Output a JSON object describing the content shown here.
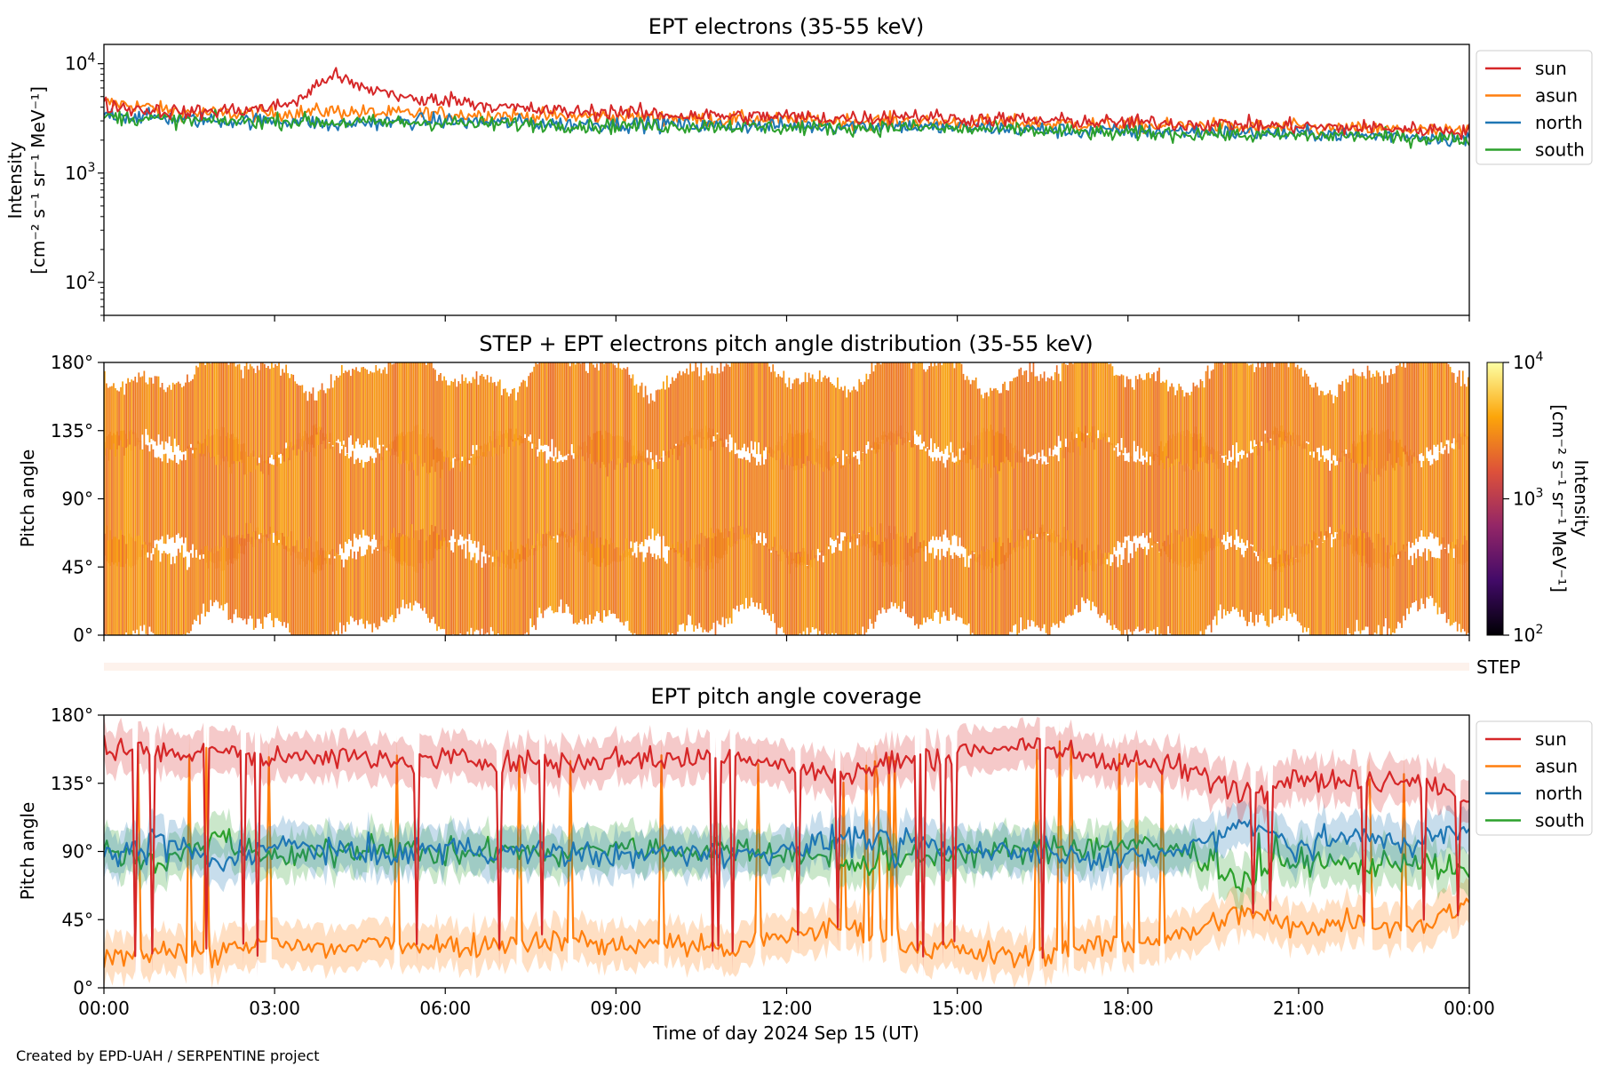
{
  "chart_data": [
    {
      "type": "line",
      "title": "EPT electrons (35-55 keV)",
      "ylabel_lines": [
        "Intensity",
        "[cm⁻² s⁻¹ sr⁻¹ MeV⁻¹]"
      ],
      "yscale": "log",
      "ylim": [
        50,
        15000
      ],
      "yticks": [
        {
          "value": 100,
          "label": "10",
          "exp": "2"
        },
        {
          "value": 1000,
          "label": "10",
          "exp": "3"
        },
        {
          "value": 10000,
          "label": "10",
          "exp": "4"
        }
      ],
      "xlim_hours": [
        0,
        24
      ],
      "legend_placement": "outside-right-top",
      "series": [
        {
          "name": "sun",
          "color": "#d62728",
          "x_hours": [
            0,
            0.5,
            1,
            1.5,
            2,
            2.5,
            3,
            3.5,
            4,
            4.5,
            5,
            5.5,
            6,
            6.5,
            7,
            7.5,
            8,
            8.5,
            9,
            9.5,
            10,
            10.5,
            11,
            11.5,
            12,
            12.5,
            13,
            13.5,
            14,
            14.5,
            15,
            15.5,
            16,
            16.5,
            17,
            17.5,
            18,
            18.5,
            19,
            19.5,
            20,
            20.5,
            21,
            21.5,
            22,
            22.5,
            23,
            23.5,
            24
          ],
          "values": [
            4200,
            3900,
            3700,
            3600,
            3700,
            3800,
            4000,
            4800,
            8000,
            6000,
            5500,
            4500,
            4800,
            4400,
            4000,
            3800,
            3700,
            3600,
            3700,
            3500,
            3400,
            3400,
            3300,
            3300,
            3300,
            3200,
            3200,
            3200,
            3400,
            3300,
            3100,
            3100,
            3100,
            3000,
            3000,
            2900,
            2900,
            2900,
            2800,
            2800,
            2800,
            2700,
            2700,
            2600,
            2600,
            2600,
            2500,
            2500,
            2400
          ]
        },
        {
          "name": "asun",
          "color": "#ff7f0e",
          "x_hours": [
            0,
            0.5,
            1,
            1.5,
            2,
            2.5,
            3,
            3.5,
            4,
            4.5,
            5,
            5.5,
            6,
            6.5,
            7,
            7.5,
            8,
            8.5,
            9,
            9.5,
            10,
            10.5,
            11,
            11.5,
            12,
            12.5,
            13,
            13.5,
            14,
            14.5,
            15,
            15.5,
            16,
            16.5,
            17,
            17.5,
            18,
            18.5,
            19,
            19.5,
            20,
            20.5,
            21,
            21.5,
            22,
            22.5,
            23,
            23.5,
            24
          ],
          "values": [
            4400,
            4200,
            3800,
            3600,
            3500,
            3500,
            3500,
            3600,
            3700,
            3600,
            3500,
            3500,
            3500,
            3400,
            3400,
            3300,
            3300,
            3300,
            3300,
            3200,
            3200,
            3100,
            3100,
            3100,
            3000,
            3000,
            3000,
            3000,
            3000,
            2900,
            2900,
            2900,
            2900,
            2800,
            2800,
            2800,
            2700,
            2700,
            2700,
            2700,
            2600,
            2600,
            2600,
            2500,
            2500,
            2500,
            2500,
            2400,
            2400
          ]
        },
        {
          "name": "north",
          "color": "#1f77b4",
          "x_hours": [
            0,
            0.5,
            1,
            1.5,
            2,
            2.5,
            3,
            3.5,
            4,
            4.5,
            5,
            5.5,
            6,
            6.5,
            7,
            7.5,
            8,
            8.5,
            9,
            9.5,
            10,
            10.5,
            11,
            11.5,
            12,
            12.5,
            13,
            13.5,
            14,
            14.5,
            15,
            15.5,
            16,
            16.5,
            17,
            17.5,
            18,
            18.5,
            19,
            19.5,
            20,
            20.5,
            21,
            21.5,
            22,
            22.5,
            23,
            23.5,
            24
          ],
          "values": [
            3500,
            3300,
            3200,
            3100,
            3000,
            3000,
            3000,
            3000,
            2700,
            2900,
            2900,
            3000,
            3000,
            2900,
            2900,
            2900,
            2800,
            2800,
            2800,
            2800,
            2800,
            2700,
            2700,
            2700,
            2700,
            2700,
            2700,
            2700,
            2700,
            2600,
            2600,
            2600,
            2500,
            2500,
            2400,
            2400,
            2400,
            2400,
            2400,
            2400,
            2300,
            2300,
            2300,
            2300,
            2200,
            2200,
            2200,
            2100,
            2000
          ]
        },
        {
          "name": "south",
          "color": "#2ca02c",
          "x_hours": [
            0,
            0.5,
            1,
            1.5,
            2,
            2.5,
            3,
            3.5,
            4,
            4.5,
            5,
            5.5,
            6,
            6.5,
            7,
            7.5,
            8,
            8.5,
            9,
            9.5,
            10,
            10.5,
            11,
            11.5,
            12,
            12.5,
            13,
            13.5,
            14,
            14.5,
            15,
            15.5,
            16,
            16.5,
            17,
            17.5,
            18,
            18.5,
            19,
            19.5,
            20,
            20.5,
            21,
            21.5,
            22,
            22.5,
            23,
            23.5,
            24
          ],
          "values": [
            3300,
            3200,
            3100,
            3000,
            3000,
            3000,
            3000,
            3000,
            2900,
            2900,
            2900,
            2900,
            2900,
            2800,
            2800,
            2800,
            2800,
            2700,
            2700,
            2700,
            2700,
            2700,
            2700,
            2600,
            2600,
            2600,
            2600,
            2600,
            2600,
            2600,
            2500,
            2500,
            2500,
            2400,
            2400,
            2300,
            2300,
            2300,
            2300,
            2300,
            2200,
            2200,
            2200,
            2200,
            2200,
            2100,
            2100,
            2100,
            2000
          ]
        }
      ]
    },
    {
      "type": "heatmap",
      "title": "STEP + EPT electrons pitch angle distribution (35-55 keV)",
      "ylabel": "Pitch angle",
      "ylim_deg": [
        0,
        180
      ],
      "yticks": [
        "0°",
        "45°",
        "90°",
        "135°",
        "180°"
      ],
      "xlim_hours": [
        0,
        24
      ],
      "colorbar": {
        "label_lines": [
          "Intensity",
          "[cm⁻² s⁻¹ sr⁻¹ MeV⁻¹]"
        ],
        "scale": "log",
        "range": [
          100,
          10000
        ],
        "ticks": [
          {
            "value": 100,
            "label": "10",
            "exp": "2"
          },
          {
            "value": 1000,
            "label": "10",
            "exp": "3"
          },
          {
            "value": 10000,
            "label": "10",
            "exp": "4"
          }
        ],
        "colors": [
          "#000004",
          "#420a68",
          "#932667",
          "#dd513a",
          "#fca50a",
          "#fcffa4"
        ]
      },
      "dominant_color": "#f28a1a",
      "step_strip_label": "STEP"
    },
    {
      "type": "line",
      "title": "EPT pitch angle coverage",
      "ylabel": "Pitch angle",
      "ylim_deg": [
        0,
        180
      ],
      "yticks": [
        "0°",
        "45°",
        "90°",
        "135°",
        "180°"
      ],
      "xlabel": "Time of day 2024 Sep 15 (UT)",
      "xticks": [
        "00:00",
        "03:00",
        "06:00",
        "09:00",
        "12:00",
        "15:00",
        "18:00",
        "21:00",
        "00:00"
      ],
      "xlim_hours": [
        0,
        24
      ],
      "legend_placement": "outside-right-top",
      "series": [
        {
          "name": "sun",
          "color": "#d62728",
          "x_hours": [
            0,
            1,
            2,
            3,
            4,
            5,
            6,
            7,
            8,
            9,
            10,
            11,
            12,
            13,
            14,
            15,
            16,
            17,
            18,
            19,
            20,
            21,
            22,
            23,
            24
          ],
          "values_deg": [
            160,
            155,
            158,
            150,
            155,
            148,
            152,
            150,
            148,
            152,
            150,
            155,
            145,
            140,
            150,
            155,
            160,
            155,
            150,
            145,
            130,
            140,
            135,
            140,
            125
          ]
        },
        {
          "name": "asun",
          "color": "#ff7f0e",
          "x_hours": [
            0,
            1,
            2,
            3,
            4,
            5,
            6,
            7,
            8,
            9,
            10,
            11,
            12,
            13,
            14,
            15,
            16,
            17,
            18,
            19,
            20,
            21,
            22,
            23,
            24
          ],
          "values_deg": [
            20,
            25,
            22,
            30,
            25,
            30,
            28,
            30,
            32,
            28,
            30,
            25,
            35,
            40,
            30,
            25,
            20,
            25,
            30,
            35,
            50,
            40,
            45,
            40,
            55
          ]
        },
        {
          "name": "north",
          "color": "#1f77b4",
          "x_hours": [
            0,
            1,
            2,
            3,
            4,
            5,
            6,
            7,
            8,
            9,
            10,
            11,
            12,
            13,
            14,
            15,
            16,
            17,
            18,
            19,
            20,
            21,
            22,
            23,
            24
          ],
          "values_deg": [
            85,
            100,
            80,
            95,
            90,
            85,
            95,
            88,
            92,
            86,
            90,
            88,
            90,
            100,
            95,
            92,
            90,
            88,
            85,
            90,
            110,
            95,
            100,
            95,
            105
          ]
        },
        {
          "name": "south",
          "color": "#2ca02c",
          "x_hours": [
            0,
            1,
            2,
            3,
            4,
            5,
            6,
            7,
            8,
            9,
            10,
            11,
            12,
            13,
            14,
            15,
            16,
            17,
            18,
            19,
            20,
            21,
            22,
            23,
            24
          ],
          "values_deg": [
            95,
            80,
            100,
            85,
            90,
            95,
            85,
            92,
            88,
            94,
            90,
            92,
            90,
            80,
            85,
            88,
            90,
            92,
            95,
            90,
            70,
            85,
            80,
            85,
            75
          ]
        }
      ]
    }
  ],
  "footer": "Created by EPD-UAH / SERPENTINE project"
}
